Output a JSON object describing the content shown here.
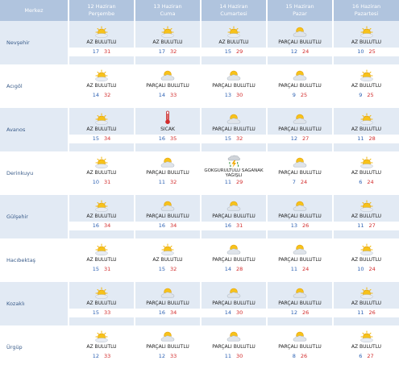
{
  "header": {
    "location_label": "Merkez",
    "days": [
      {
        "date": "12 Haziran",
        "weekday": "Perşembe"
      },
      {
        "date": "13 Haziran",
        "weekday": "Cuma"
      },
      {
        "date": "14 Haziran",
        "weekday": "Cumartesi"
      },
      {
        "date": "15 Haziran",
        "weekday": "Pazar"
      },
      {
        "date": "16 Haziran",
        "weekday": "Pazartesi"
      }
    ]
  },
  "colors": {
    "header_bg": "#b0c4de",
    "row_shade": "#e2eaf4",
    "min_temp": "#2d62b3",
    "max_temp": "#d22b2b",
    "city_text": "#3a5c8a"
  },
  "rows": [
    {
      "city": "Nevşehir",
      "days": [
        {
          "icon": "partly-cloudy-sun-icon",
          "condition": "AZ BULUTLU",
          "min": "17",
          "max": "31"
        },
        {
          "icon": "partly-cloudy-sun-icon",
          "condition": "AZ BULUTLU",
          "min": "17",
          "max": "32"
        },
        {
          "icon": "partly-cloudy-sun-icon",
          "condition": "AZ BULUTLU",
          "min": "15",
          "max": "29"
        },
        {
          "icon": "cloudy-sun-icon",
          "condition": "PARÇALI BULUTLU",
          "min": "12",
          "max": "24"
        },
        {
          "icon": "partly-cloudy-sun-icon",
          "condition": "AZ BULUTLU",
          "min": "10",
          "max": "25"
        }
      ]
    },
    {
      "city": "Acıgöl",
      "days": [
        {
          "icon": "partly-cloudy-sun-icon",
          "condition": "AZ BULUTLU",
          "min": "14",
          "max": "32"
        },
        {
          "icon": "cloudy-sun-icon",
          "condition": "PARÇALI BULUTLU",
          "min": "14",
          "max": "33"
        },
        {
          "icon": "cloudy-sun-icon",
          "condition": "PARÇALI BULUTLU",
          "min": "13",
          "max": "30"
        },
        {
          "icon": "cloudy-sun-icon",
          "condition": "PARÇALI BULUTLU",
          "min": "9",
          "max": "25"
        },
        {
          "icon": "partly-cloudy-sun-icon",
          "condition": "AZ BULUTLU",
          "min": "9",
          "max": "25"
        }
      ]
    },
    {
      "city": "Avanos",
      "days": [
        {
          "icon": "partly-cloudy-sun-icon",
          "condition": "AZ BULUTLU",
          "min": "15",
          "max": "34"
        },
        {
          "icon": "thermometer-hot-icon",
          "condition": "SICAK",
          "min": "16",
          "max": "35"
        },
        {
          "icon": "cloudy-sun-icon",
          "condition": "PARÇALI BULUTLU",
          "min": "15",
          "max": "32"
        },
        {
          "icon": "cloudy-sun-icon",
          "condition": "PARÇALI BULUTLU",
          "min": "12",
          "max": "27"
        },
        {
          "icon": "partly-cloudy-sun-icon",
          "condition": "AZ BULUTLU",
          "min": "11",
          "max": "28"
        }
      ]
    },
    {
      "city": "Derinkuyu",
      "days": [
        {
          "icon": "partly-cloudy-sun-icon",
          "condition": "AZ BULUTLU",
          "min": "10",
          "max": "31"
        },
        {
          "icon": "cloudy-sun-icon",
          "condition": "PARÇALI BULUTLU",
          "min": "11",
          "max": "32"
        },
        {
          "icon": "thunderstorm-icon",
          "condition": "GÖKGÜRÜLTÜLÜ SAĞANAK YAĞIŞLI",
          "min": "11",
          "max": "29"
        },
        {
          "icon": "cloudy-sun-icon",
          "condition": "PARÇALI BULUTLU",
          "min": "7",
          "max": "24"
        },
        {
          "icon": "partly-cloudy-sun-icon",
          "condition": "AZ BULUTLU",
          "min": "6",
          "max": "24"
        }
      ]
    },
    {
      "city": "Gülşehir",
      "days": [
        {
          "icon": "partly-cloudy-sun-icon",
          "condition": "AZ BULUTLU",
          "min": "16",
          "max": "34"
        },
        {
          "icon": "cloudy-sun-icon",
          "condition": "PARÇALI BULUTLU",
          "min": "16",
          "max": "34"
        },
        {
          "icon": "cloudy-sun-icon",
          "condition": "PARÇALI BULUTLU",
          "min": "16",
          "max": "31"
        },
        {
          "icon": "cloudy-sun-icon",
          "condition": "PARÇALI BULUTLU",
          "min": "13",
          "max": "26"
        },
        {
          "icon": "partly-cloudy-sun-icon",
          "condition": "AZ BULUTLU",
          "min": "11",
          "max": "27"
        }
      ]
    },
    {
      "city": "Hacıbektaş",
      "days": [
        {
          "icon": "partly-cloudy-sun-icon",
          "condition": "AZ BULUTLU",
          "min": "15",
          "max": "31"
        },
        {
          "icon": "partly-cloudy-sun-icon",
          "condition": "AZ BULUTLU",
          "min": "15",
          "max": "32"
        },
        {
          "icon": "cloudy-sun-icon",
          "condition": "PARÇALI BULUTLU",
          "min": "14",
          "max": "28"
        },
        {
          "icon": "cloudy-sun-icon",
          "condition": "PARÇALI BULUTLU",
          "min": "11",
          "max": "24"
        },
        {
          "icon": "partly-cloudy-sun-icon",
          "condition": "AZ BULUTLU",
          "min": "10",
          "max": "24"
        }
      ]
    },
    {
      "city": "Kozaklı",
      "days": [
        {
          "icon": "partly-cloudy-sun-icon",
          "condition": "AZ BULUTLU",
          "min": "15",
          "max": "33"
        },
        {
          "icon": "cloudy-sun-icon",
          "condition": "PARÇALI BULUTLU",
          "min": "16",
          "max": "34"
        },
        {
          "icon": "cloudy-sun-icon",
          "condition": "PARÇALI BULUTLU",
          "min": "14",
          "max": "30"
        },
        {
          "icon": "cloudy-sun-icon",
          "condition": "PARÇALI BULUTLU",
          "min": "12",
          "max": "26"
        },
        {
          "icon": "partly-cloudy-sun-icon",
          "condition": "AZ BULUTLU",
          "min": "11",
          "max": "26"
        }
      ]
    },
    {
      "city": "Ürgüp",
      "days": [
        {
          "icon": "partly-cloudy-sun-icon",
          "condition": "AZ BULUTLU",
          "min": "12",
          "max": "33"
        },
        {
          "icon": "cloudy-sun-icon",
          "condition": "PARÇALI BULUTLU",
          "min": "12",
          "max": "33"
        },
        {
          "icon": "cloudy-sun-icon",
          "condition": "PARÇALI BULUTLU",
          "min": "11",
          "max": "30"
        },
        {
          "icon": "cloudy-sun-icon",
          "condition": "PARÇALI BULUTLU",
          "min": "8",
          "max": "26"
        },
        {
          "icon": "partly-cloudy-sun-icon",
          "condition": "AZ BULUTLU",
          "min": "6",
          "max": "27"
        }
      ]
    }
  ]
}
